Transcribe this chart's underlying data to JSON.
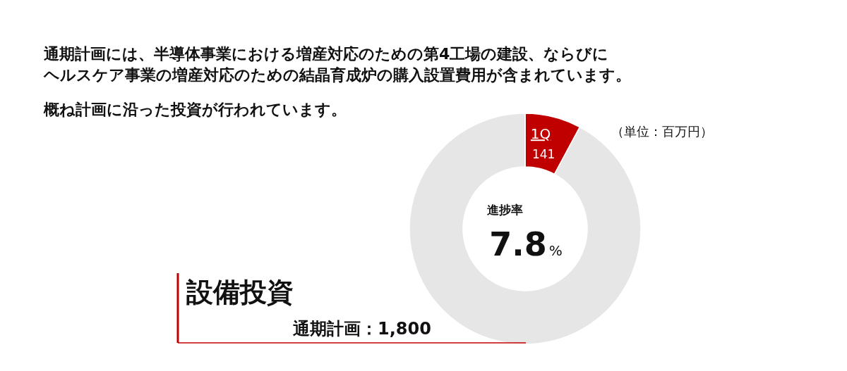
{
  "chart_data": {
    "type": "donut",
    "title": "設備投資",
    "subtitle": "通期計画：1,800",
    "categories": [
      "1Q",
      null
    ],
    "values": [
      141,
      1659
    ],
    "colors": [
      "#c00000",
      "#e6e6e6"
    ],
    "value_labels": [
      "141",
      null
    ],
    "annotations": [
      "通期計画には、半導体事業における増産対応のための第4工場の建設、ならびに",
      "ヘルスケア事業の増産対応のための結晶育成炉の購入設置費用が含まれています。",
      "概ね計画に沿った投資が行われています。",
      "（単位：百万円）",
      "進捗率",
      "7.8%"
    ]
  }
}
